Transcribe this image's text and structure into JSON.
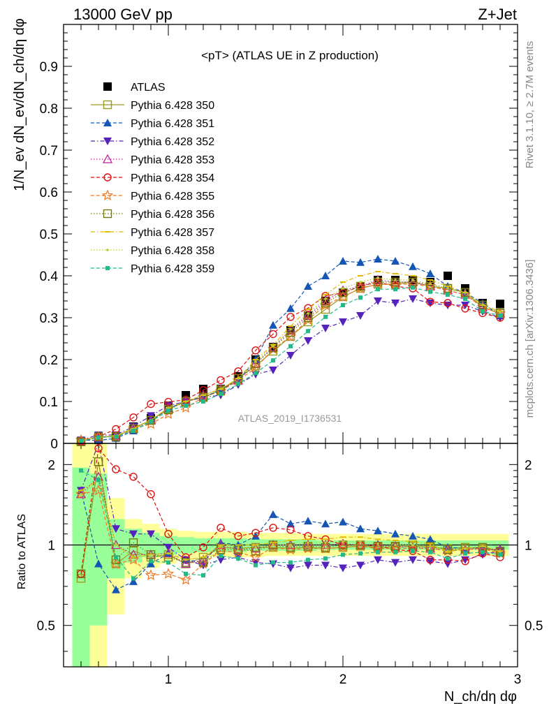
{
  "header": {
    "left": "13000 GeV pp",
    "right": "Z+Jet",
    "side_top": "Rivet 3.1.10, ≥ 2.7M events",
    "side_bottom": "mcplots.cern.ch [arXiv:1306.3436]"
  },
  "chart_data": [
    {
      "type": "scatter",
      "title": "<pT> (ATLAS UE in Z production)",
      "ylabel": "1/N_ev dN_ev/dN_ch/dη dφ",
      "watermark": "ATLAS_2019_I1736531",
      "xlim": [
        0.4,
        3.0
      ],
      "ylim": [
        0,
        1.0
      ],
      "y_ticks": [
        0,
        0.1,
        0.2,
        0.3,
        0.4,
        0.5,
        0.6,
        0.7,
        0.8,
        0.9
      ],
      "x": [
        0.5,
        0.6,
        0.7,
        0.8,
        0.9,
        1.0,
        1.1,
        1.2,
        1.3,
        1.4,
        1.5,
        1.6,
        1.7,
        1.8,
        1.9,
        2.0,
        2.1,
        2.2,
        2.3,
        2.4,
        2.5,
        2.6,
        2.7,
        2.8,
        2.9
      ],
      "legend_position": "top-left",
      "series": [
        {
          "name": "ATLAS",
          "color": "#000000",
          "marker": "square-filled",
          "line": "none",
          "values": [
            0.005,
            0.008,
            0.018,
            0.04,
            0.06,
            0.09,
            0.115,
            0.13,
            0.13,
            0.16,
            0.2,
            0.23,
            0.27,
            0.305,
            0.34,
            0.36,
            0.375,
            0.39,
            0.39,
            0.39,
            0.385,
            0.4,
            0.37,
            0.335,
            0.333
          ]
        },
        {
          "name": "Pythia 6.428 350",
          "color": "#9a9a22",
          "marker": "square-open",
          "line": "solid",
          "values": [
            0.004,
            0.016,
            0.016,
            0.037,
            0.055,
            0.082,
            0.1,
            0.11,
            0.128,
            0.155,
            0.185,
            0.22,
            0.255,
            0.29,
            0.32,
            0.35,
            0.37,
            0.38,
            0.38,
            0.385,
            0.375,
            0.37,
            0.36,
            0.325,
            0.31
          ]
        },
        {
          "name": "Pythia 6.428 351",
          "color": "#1555b5",
          "marker": "triangle-up-filled",
          "line": "dashed",
          "values": [
            0.008,
            0.007,
            0.012,
            0.03,
            0.054,
            0.082,
            0.102,
            0.11,
            0.128,
            0.15,
            0.2,
            0.282,
            0.322,
            0.375,
            0.4,
            0.435,
            0.432,
            0.44,
            0.435,
            0.422,
            0.405,
            0.375,
            0.36,
            0.335,
            0.305
          ]
        },
        {
          "name": "Pythia 6.428 352",
          "color": "#5522bb",
          "marker": "triangle-down-filled",
          "line": "dashdot",
          "values": [
            0.008,
            0.02,
            0.02,
            0.04,
            0.066,
            0.09,
            0.1,
            0.11,
            0.115,
            0.14,
            0.165,
            0.175,
            0.21,
            0.245,
            0.275,
            0.29,
            0.305,
            0.34,
            0.335,
            0.345,
            0.335,
            0.33,
            0.33,
            0.315,
            0.3
          ]
        },
        {
          "name": "Pythia 6.428 353",
          "color": "#bb2299",
          "marker": "triangle-up-open",
          "line": "dotted",
          "values": [
            0.006,
            0.014,
            0.018,
            0.035,
            0.055,
            0.085,
            0.1,
            0.115,
            0.13,
            0.15,
            0.19,
            0.23,
            0.27,
            0.305,
            0.34,
            0.365,
            0.375,
            0.39,
            0.385,
            0.385,
            0.375,
            0.365,
            0.355,
            0.325,
            0.31
          ]
        },
        {
          "name": "Pythia 6.428 354",
          "color": "#dd1111",
          "marker": "circle-open",
          "line": "dashed",
          "values": [
            0.004,
            0.016,
            0.034,
            0.062,
            0.094,
            0.099,
            0.104,
            0.127,
            0.151,
            0.172,
            0.222,
            0.261,
            0.302,
            0.323,
            0.352,
            0.359,
            0.375,
            0.385,
            0.375,
            0.37,
            0.338,
            0.335,
            0.322,
            0.311,
            0.3
          ]
        },
        {
          "name": "Pythia 6.428 355",
          "color": "#ee7722",
          "marker": "star-open",
          "line": "dashed",
          "values": [
            0.008,
            0.016,
            0.015,
            0.035,
            0.046,
            0.07,
            0.085,
            0.11,
            0.125,
            0.15,
            0.18,
            0.225,
            0.255,
            0.295,
            0.33,
            0.35,
            0.37,
            0.38,
            0.38,
            0.38,
            0.375,
            0.365,
            0.355,
            0.325,
            0.31
          ]
        },
        {
          "name": "Pythia 6.428 356",
          "color": "#777711",
          "marker": "square-open",
          "line": "dotted",
          "values": [
            0.004,
            0.016,
            0.016,
            0.035,
            0.055,
            0.08,
            0.1,
            0.11,
            0.125,
            0.155,
            0.19,
            0.228,
            0.265,
            0.3,
            0.335,
            0.36,
            0.375,
            0.385,
            0.385,
            0.385,
            0.38,
            0.37,
            0.36,
            0.33,
            0.312
          ]
        },
        {
          "name": "Pythia 6.428 357",
          "color": "#ddbb00",
          "marker": "dash-small",
          "line": "dashdot",
          "values": [
            0.006,
            0.014,
            0.018,
            0.035,
            0.055,
            0.085,
            0.1,
            0.115,
            0.13,
            0.155,
            0.2,
            0.235,
            0.28,
            0.32,
            0.355,
            0.385,
            0.4,
            0.41,
            0.405,
            0.4,
            0.39,
            0.375,
            0.36,
            0.33,
            0.315
          ]
        },
        {
          "name": "Pythia 6.428 358",
          "color": "#bbcc33",
          "marker": "dot-small",
          "line": "dotted",
          "values": [
            0.006,
            0.014,
            0.018,
            0.035,
            0.055,
            0.085,
            0.1,
            0.115,
            0.13,
            0.155,
            0.195,
            0.232,
            0.272,
            0.31,
            0.345,
            0.37,
            0.385,
            0.395,
            0.39,
            0.39,
            0.38,
            0.37,
            0.36,
            0.33,
            0.313
          ]
        },
        {
          "name": "Pythia 6.428 359",
          "color": "#22bb88",
          "marker": "square-small-filled",
          "line": "dashed",
          "values": [
            0.006,
            0.014,
            0.016,
            0.03,
            0.052,
            0.078,
            0.09,
            0.1,
            0.118,
            0.142,
            0.168,
            0.198,
            0.232,
            0.268,
            0.302,
            0.33,
            0.348,
            0.368,
            0.368,
            0.372,
            0.362,
            0.355,
            0.345,
            0.315,
            0.305
          ]
        }
      ]
    },
    {
      "type": "scatter",
      "ylabel": "Ratio to ATLAS",
      "xlabel": "N_ch/dη dφ",
      "log_y": true,
      "ylim": [
        0.35,
        2.4
      ],
      "y_ticks": [
        0.5,
        1,
        2
      ],
      "x_ticks": [
        1,
        2,
        3
      ],
      "reference_line": 1,
      "band_outer_color": "#ffff99",
      "band_inner_color": "#99ff99",
      "band_outer": [
        [
          0.35,
          2.4
        ],
        [
          0.35,
          2.4
        ],
        [
          0.55,
          1.5
        ],
        [
          0.75,
          1.25
        ],
        [
          0.82,
          1.2
        ],
        [
          0.85,
          1.15
        ],
        [
          0.88,
          1.13
        ],
        [
          0.9,
          1.12
        ],
        [
          0.9,
          1.12
        ],
        [
          0.9,
          1.12
        ],
        [
          0.9,
          1.11
        ],
        [
          0.91,
          1.11
        ],
        [
          0.91,
          1.11
        ],
        [
          0.91,
          1.1
        ],
        [
          0.91,
          1.1
        ],
        [
          0.91,
          1.1
        ],
        [
          0.91,
          1.1
        ],
        [
          0.91,
          1.1
        ],
        [
          0.91,
          1.1
        ],
        [
          0.91,
          1.1
        ],
        [
          0.91,
          1.1
        ],
        [
          0.91,
          1.1
        ],
        [
          0.91,
          1.1
        ],
        [
          0.91,
          1.1
        ],
        [
          0.91,
          1.1
        ]
      ],
      "band_inner": [
        [
          0.35,
          1.95
        ],
        [
          0.5,
          1.85
        ],
        [
          0.75,
          1.25
        ],
        [
          0.86,
          1.15
        ],
        [
          0.9,
          1.11
        ],
        [
          0.92,
          1.08
        ],
        [
          0.93,
          1.07
        ],
        [
          0.94,
          1.06
        ],
        [
          0.94,
          1.06
        ],
        [
          0.94,
          1.06
        ],
        [
          0.95,
          1.05
        ],
        [
          0.95,
          1.05
        ],
        [
          0.95,
          1.05
        ],
        [
          0.95,
          1.05
        ],
        [
          0.96,
          1.04
        ],
        [
          0.96,
          1.04
        ],
        [
          0.96,
          1.04
        ],
        [
          0.96,
          1.04
        ],
        [
          0.96,
          1.04
        ],
        [
          0.96,
          1.04
        ],
        [
          0.96,
          1.04
        ],
        [
          0.96,
          1.04
        ],
        [
          0.96,
          1.04
        ],
        [
          0.96,
          1.04
        ],
        [
          0.96,
          1.04
        ]
      ],
      "series": [
        {
          "name": "Pythia 6.428 350",
          "values": [
            0.75,
            2.05,
            0.85,
            0.95,
            0.9,
            0.92,
            0.85,
            0.9,
            0.98,
            0.97,
            0.98,
            0.98,
            0.97,
            0.98,
            0.97,
            0.98,
            0.99,
            0.98,
            0.98,
            0.99,
            0.98,
            0.97,
            0.98,
            0.97,
            0.95
          ]
        },
        {
          "name": "Pythia 6.428 351",
          "values": [
            1.6,
            0.85,
            0.68,
            0.73,
            0.85,
            0.93,
            0.88,
            0.86,
            1.02,
            1.0,
            1.08,
            1.3,
            1.2,
            1.23,
            1.2,
            1.22,
            1.15,
            1.13,
            1.1,
            1.08,
            1.05,
            0.98,
            0.97,
            0.98,
            0.95
          ]
        },
        {
          "name": "Pythia 6.428 352",
          "values": [
            1.6,
            2.4,
            1.15,
            1.1,
            1.1,
            0.98,
            0.88,
            0.84,
            0.88,
            0.9,
            0.86,
            0.85,
            0.82,
            0.84,
            0.84,
            0.82,
            0.84,
            0.88,
            0.86,
            0.88,
            0.87,
            0.85,
            0.88,
            0.92,
            0.95
          ]
        },
        {
          "name": "Pythia 6.428 353",
          "values": [
            1.55,
            1.8,
            1.0,
            0.92,
            0.92,
            0.93,
            0.85,
            0.88,
            1.0,
            0.96,
            0.97,
            1.0,
            1.0,
            1.0,
            1.0,
            1.01,
            1.0,
            1.0,
            0.99,
            0.98,
            0.97,
            0.96,
            0.96,
            0.97,
            0.96
          ]
        },
        {
          "name": "Pythia 6.428 354",
          "values": [
            0.78,
            2.3,
            1.92,
            1.8,
            1.55,
            1.1,
            0.9,
            0.98,
            1.16,
            1.08,
            1.11,
            1.16,
            1.14,
            1.08,
            1.05,
            1.0,
            1.0,
            0.99,
            0.96,
            0.95,
            0.88,
            0.88,
            0.87,
            0.93,
            0.9
          ]
        },
        {
          "name": "Pythia 6.428 355",
          "values": [
            1.55,
            1.6,
            0.85,
            0.88,
            0.77,
            0.78,
            0.74,
            0.85,
            0.95,
            0.94,
            0.9,
            0.98,
            0.96,
            0.97,
            0.97,
            0.98,
            0.99,
            0.97,
            0.97,
            0.97,
            0.97,
            0.95,
            0.96,
            0.97,
            0.93
          ]
        },
        {
          "name": "Pythia 6.428 356",
          "values": [
            0.78,
            2.05,
            0.88,
            1.02,
            0.92,
            0.9,
            0.86,
            0.86,
            0.96,
            0.96,
            0.95,
            1.0,
            0.98,
            0.99,
            0.98,
            1.0,
            1.0,
            0.99,
            0.99,
            1.0,
            0.99,
            0.96,
            0.97,
            0.98,
            0.94
          ]
        },
        {
          "name": "Pythia 6.428 357",
          "values": [
            1.6,
            1.75,
            1.0,
            0.9,
            0.92,
            0.93,
            0.88,
            0.9,
            1.0,
            1.0,
            1.0,
            1.02,
            1.04,
            1.05,
            1.05,
            1.07,
            1.07,
            1.05,
            1.04,
            1.03,
            1.01,
            0.94,
            0.97,
            0.99,
            0.95
          ]
        },
        {
          "name": "Pythia 6.428 358",
          "values": [
            1.55,
            1.75,
            1.0,
            0.9,
            0.92,
            0.93,
            0.88,
            0.9,
            0.99,
            0.98,
            0.98,
            1.0,
            1.0,
            1.02,
            1.02,
            1.03,
            1.03,
            1.01,
            1.0,
            1.0,
            0.99,
            0.95,
            0.97,
            0.99,
            0.94
          ]
        },
        {
          "name": "Pythia 6.428 359",
          "values": [
            1.9,
            1.75,
            0.9,
            0.75,
            0.87,
            0.86,
            0.78,
            0.77,
            0.91,
            0.89,
            0.84,
            0.86,
            0.86,
            0.88,
            0.89,
            0.92,
            0.93,
            0.94,
            0.94,
            0.95,
            0.94,
            0.89,
            0.93,
            0.94,
            0.92
          ]
        }
      ]
    }
  ]
}
